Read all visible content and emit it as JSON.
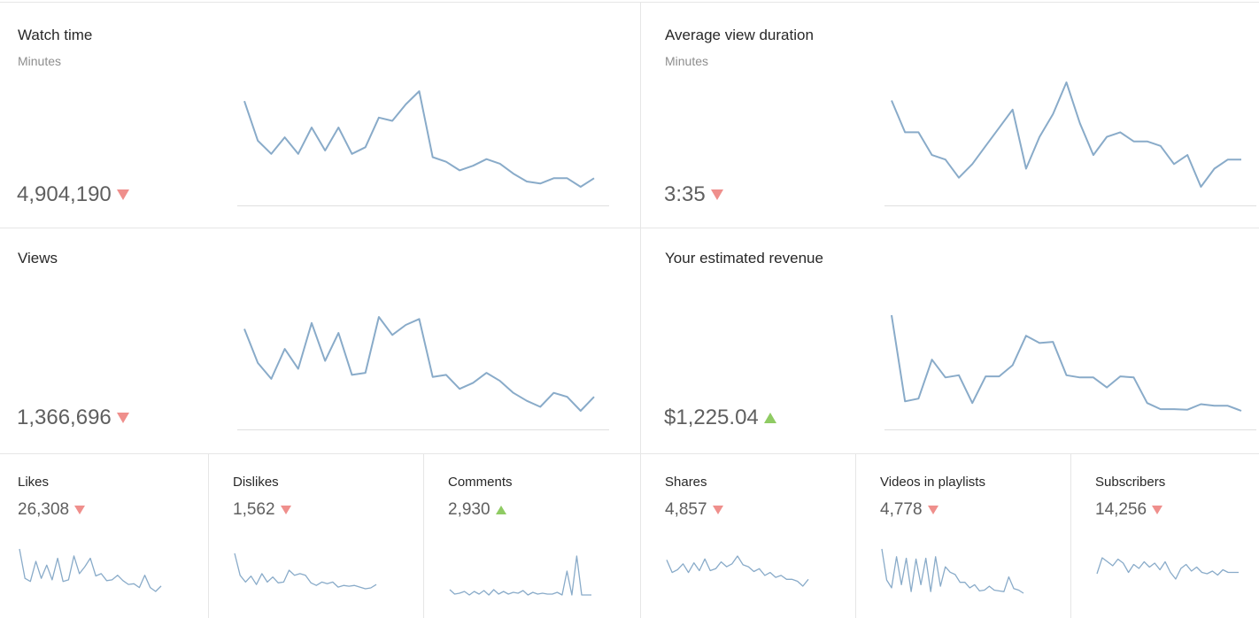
{
  "colors": {
    "trend_down": "#ef8f8c",
    "trend_up": "#8fcb63",
    "sparkline": "#89abc9",
    "divider": "#e6e6e6"
  },
  "watch_time": {
    "title": "Watch time",
    "subtitle": "Minutes",
    "value": "4,904,190",
    "trend": "down",
    "series": [
      5.8,
      5.2,
      5.0,
      5.25,
      5.0,
      5.4,
      5.05,
      5.4,
      5.0,
      5.1,
      5.55,
      5.5,
      5.75,
      5.95,
      4.95,
      4.88,
      4.75,
      4.82,
      4.92,
      4.85,
      4.7,
      4.58,
      4.55,
      4.63,
      4.63,
      4.5,
      4.63
    ]
  },
  "avg_view_duration": {
    "title": "Average view duration",
    "subtitle": "Minutes",
    "value": "3:35",
    "trend": "down",
    "series": [
      3.95,
      3.88,
      3.88,
      3.83,
      3.82,
      3.78,
      3.81,
      3.85,
      3.89,
      3.93,
      3.8,
      3.87,
      3.92,
      3.99,
      3.9,
      3.83,
      3.87,
      3.88,
      3.86,
      3.86,
      3.85,
      3.81,
      3.83,
      3.76,
      3.8,
      3.82,
      3.82
    ]
  },
  "views": {
    "title": "Views",
    "value": "1,366,696",
    "trend": "down",
    "series": [
      1.62,
      1.45,
      1.37,
      1.52,
      1.42,
      1.65,
      1.46,
      1.6,
      1.39,
      1.4,
      1.68,
      1.59,
      1.64,
      1.67,
      1.38,
      1.39,
      1.32,
      1.35,
      1.4,
      1.36,
      1.3,
      1.26,
      1.23,
      1.3,
      1.28,
      1.21,
      1.28
    ]
  },
  "revenue": {
    "title": "Your estimated revenue",
    "value": "$1,225.04",
    "trend": "up",
    "series": [
      3.1,
      1.55,
      1.6,
      2.3,
      1.98,
      2.02,
      1.52,
      2.0,
      2.0,
      2.2,
      2.73,
      2.6,
      2.62,
      2.02,
      1.98,
      1.98,
      1.8,
      2.0,
      1.98,
      1.52,
      1.41,
      1.41,
      1.4,
      1.5,
      1.47,
      1.47,
      1.38
    ]
  },
  "likes": {
    "title": "Likes",
    "value": "26,308",
    "trend": "down",
    "series": [
      6,
      2.2,
      1.8,
      4.4,
      2.2,
      3.9,
      2.0,
      4.8,
      1.8,
      2.0,
      5.1,
      2.8,
      3.7,
      4.8,
      2.5,
      2.8,
      1.9,
      2.0,
      2.6,
      1.9,
      1.4,
      1.5,
      1.0,
      2.6,
      1.0,
      0.5,
      1.2
    ]
  },
  "dislikes": {
    "title": "Dislikes",
    "value": "1,562",
    "trend": "down",
    "series": [
      4.6,
      2.0,
      1.2,
      1.9,
      0.9,
      2.2,
      1.2,
      1.8,
      1.1,
      1.2,
      2.6,
      2.0,
      2.2,
      2.0,
      1.1,
      0.8,
      1.2,
      1.0,
      1.2,
      0.6,
      0.8,
      0.7,
      0.8,
      0.6,
      0.4,
      0.5,
      0.9
    ]
  },
  "comments": {
    "title": "Comments",
    "value": "2,930",
    "trend": "up",
    "series": [
      0.7,
      0.2,
      0.3,
      0.5,
      0.1,
      0.5,
      0.2,
      0.6,
      0.1,
      0.7,
      0.2,
      0.5,
      0.2,
      0.4,
      0.3,
      0.6,
      0.1,
      0.4,
      0.2,
      0.3,
      0.2,
      0.2,
      0.4,
      0.1,
      2.8,
      0.1,
      4.5,
      0.1,
      0.1,
      0.1
    ]
  },
  "shares": {
    "title": "Shares",
    "value": "4,857",
    "trend": "down",
    "series": [
      3.5,
      2.2,
      2.5,
      3.1,
      2.2,
      3.2,
      2.4,
      3.6,
      2.4,
      2.6,
      3.3,
      2.8,
      3.1,
      3.9,
      3.0,
      2.8,
      2.3,
      2.6,
      1.9,
      2.2,
      1.7,
      1.9,
      1.5,
      1.5,
      1.3,
      0.8,
      1.5
    ]
  },
  "videos_in_playlists": {
    "title": "Videos in playlists",
    "value": "4,778",
    "trend": "down",
    "series": [
      5.8,
      1.8,
      0.8,
      4.8,
      1.2,
      4.6,
      0.3,
      4.5,
      1.2,
      4.6,
      0.3,
      4.8,
      1.0,
      3.5,
      2.8,
      2.5,
      1.5,
      1.5,
      0.8,
      1.2,
      0.4,
      0.5,
      1.0,
      0.5,
      0.4,
      0.3,
      2.2,
      0.7,
      0.5,
      0.1
    ]
  },
  "subscribers": {
    "title": "Subscribers",
    "value": "14,256",
    "trend": "down",
    "series": [
      2.4,
      3.6,
      3.3,
      3.0,
      3.5,
      3.2,
      2.5,
      3.1,
      2.8,
      3.3,
      2.9,
      3.2,
      2.7,
      3.3,
      2.5,
      2.0,
      2.8,
      3.1,
      2.6,
      2.9,
      2.5,
      2.4,
      2.6,
      2.3,
      2.7,
      2.5,
      2.5,
      2.5
    ]
  }
}
